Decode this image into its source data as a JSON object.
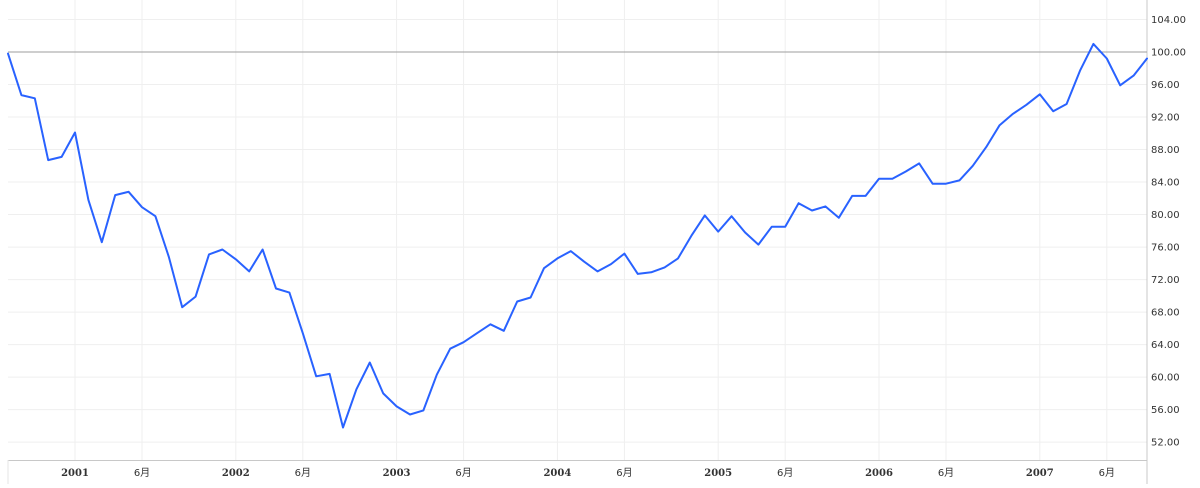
{
  "chart_data": {
    "type": "line",
    "title": "",
    "xlabel": "",
    "ylabel": "",
    "ylim": [
      49.8,
      106.4
    ],
    "xlim": [
      "2000-08",
      "2007-09"
    ],
    "grid": true,
    "legend": "none",
    "y_ticks": [
      "52.00",
      "56.00",
      "60.00",
      "64.00",
      "68.00",
      "72.00",
      "76.00",
      "80.00",
      "84.00",
      "88.00",
      "92.00",
      "96.00",
      "100.00",
      "104.00"
    ],
    "x_ticks": [
      {
        "date": "2001-01",
        "label": "2001",
        "year": true
      },
      {
        "date": "2001-06",
        "label": "6月",
        "year": false
      },
      {
        "date": "2002-01",
        "label": "2002",
        "year": true
      },
      {
        "date": "2002-06",
        "label": "6月",
        "year": false
      },
      {
        "date": "2003-01",
        "label": "2003",
        "year": true
      },
      {
        "date": "2003-06",
        "label": "6月",
        "year": false
      },
      {
        "date": "2004-01",
        "label": "2004",
        "year": true
      },
      {
        "date": "2004-06",
        "label": "6月",
        "year": false
      },
      {
        "date": "2005-01",
        "label": "2005",
        "year": true
      },
      {
        "date": "2005-06",
        "label": "6月",
        "year": false
      },
      {
        "date": "2006-01",
        "label": "2006",
        "year": true
      },
      {
        "date": "2006-06",
        "label": "6月",
        "year": false
      },
      {
        "date": "2007-01",
        "label": "2007",
        "year": true
      },
      {
        "date": "2007-06",
        "label": "6月",
        "year": false
      }
    ],
    "reference_line": {
      "y": 100.0,
      "color": "#9e9e9e"
    },
    "colors": {
      "line": "#2962ff",
      "grid": "#efefef",
      "axis": "#c8c8c8",
      "text": "#333333"
    },
    "series": [
      {
        "x": [
          "2000-08",
          "2000-09",
          "2000-10",
          "2000-11",
          "2000-12",
          "2001-01",
          "2001-02",
          "2001-03",
          "2001-04",
          "2001-05",
          "2001-06",
          "2001-07",
          "2001-08",
          "2001-09",
          "2001-10",
          "2001-11",
          "2001-12",
          "2002-01",
          "2002-02",
          "2002-03",
          "2002-04",
          "2002-05",
          "2002-06",
          "2002-07",
          "2002-08",
          "2002-09",
          "2002-10",
          "2002-11",
          "2002-12",
          "2003-01",
          "2003-02",
          "2003-03",
          "2003-04",
          "2003-05",
          "2003-06",
          "2003-07",
          "2003-08",
          "2003-09",
          "2003-10",
          "2003-11",
          "2003-12",
          "2004-01",
          "2004-02",
          "2004-03",
          "2004-04",
          "2004-05",
          "2004-06",
          "2004-07",
          "2004-08",
          "2004-09",
          "2004-10",
          "2004-11",
          "2004-12",
          "2005-01",
          "2005-02",
          "2005-03",
          "2005-04",
          "2005-05",
          "2005-06",
          "2005-07",
          "2005-08",
          "2005-09",
          "2005-10",
          "2005-11",
          "2005-12",
          "2006-01",
          "2006-02",
          "2006-03",
          "2006-04",
          "2006-05",
          "2006-06",
          "2006-07",
          "2006-08",
          "2006-09",
          "2006-10",
          "2006-11",
          "2006-12",
          "2007-01",
          "2007-02",
          "2007-03",
          "2007-04",
          "2007-05",
          "2007-06",
          "2007-07",
          "2007-08",
          "2007-09"
        ],
        "values": [
          99.8,
          94.7,
          94.3,
          86.7,
          87.1,
          90.1,
          81.8,
          76.6,
          82.4,
          82.8,
          80.9,
          79.8,
          74.8,
          68.6,
          69.9,
          75.1,
          75.7,
          74.5,
          73.0,
          75.7,
          70.9,
          70.4,
          65.4,
          60.1,
          60.4,
          53.8,
          58.5,
          61.8,
          58.0,
          56.4,
          55.4,
          55.9,
          60.3,
          63.5,
          64.3,
          65.4,
          66.5,
          65.7,
          69.3,
          69.8,
          73.4,
          74.6,
          75.5,
          74.2,
          73.0,
          73.9,
          75.2,
          72.7,
          72.9,
          73.5,
          74.6,
          77.4,
          79.9,
          77.9,
          79.8,
          77.8,
          76.3,
          78.5,
          78.5,
          81.4,
          80.5,
          81.0,
          79.6,
          82.3,
          82.3,
          84.4,
          84.4,
          85.3,
          86.3,
          83.8,
          83.8,
          84.2,
          86.0,
          88.3,
          91.0,
          92.4,
          93.5,
          94.8,
          92.7,
          93.6,
          97.7,
          101.0,
          99.2,
          95.9,
          97.1,
          99.2
        ]
      }
    ]
  }
}
